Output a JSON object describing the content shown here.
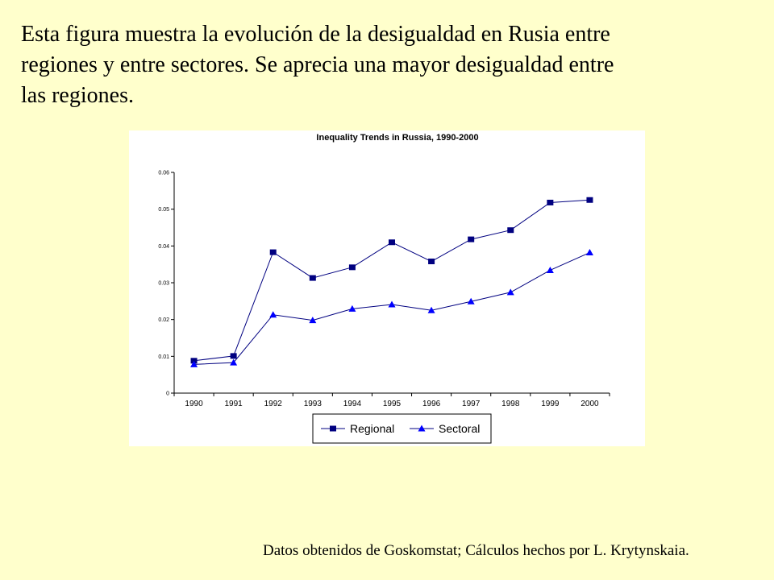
{
  "intro_text": "Esta figura muestra la evolución de la desigualdad en Rusia entre regiones y entre sectores. Se aprecia una mayor desigualdad entre las regiones.",
  "footer_text": "Datos obtenidos de Goskomstat;  Cálculos hechos por L. Krytynskaia.",
  "colors": {
    "background": "#ffffcc",
    "series_line": "#000080",
    "series_marker": "#000080",
    "sectoral_marker": "#0000ff"
  },
  "chart_data": {
    "type": "line",
    "title": "Inequality Trends in Russia, 1990-2000",
    "categories": [
      "1990",
      "1991",
      "1992",
      "1993",
      "1994",
      "1995",
      "1996",
      "1997",
      "1998",
      "1999",
      "2000"
    ],
    "series": [
      {
        "name": "Regional",
        "marker": "square",
        "values": [
          0.0088,
          0.0101,
          0.0383,
          0.0313,
          0.0342,
          0.041,
          0.0358,
          0.0418,
          0.0443,
          0.0518,
          0.0525
        ]
      },
      {
        "name": "Sectoral",
        "marker": "triangle",
        "values": [
          0.0078,
          0.0083,
          0.0213,
          0.0198,
          0.0229,
          0.0241,
          0.0225,
          0.0249,
          0.0274,
          0.0334,
          0.0382
        ]
      }
    ],
    "yticks": [
      "0",
      "0.01",
      "0.02",
      "0.03",
      "0.04",
      "0.05",
      "0.06"
    ],
    "ylim": [
      0,
      0.06
    ],
    "xlabel": "",
    "ylabel": "",
    "grid": false,
    "legend_position": "bottom"
  }
}
